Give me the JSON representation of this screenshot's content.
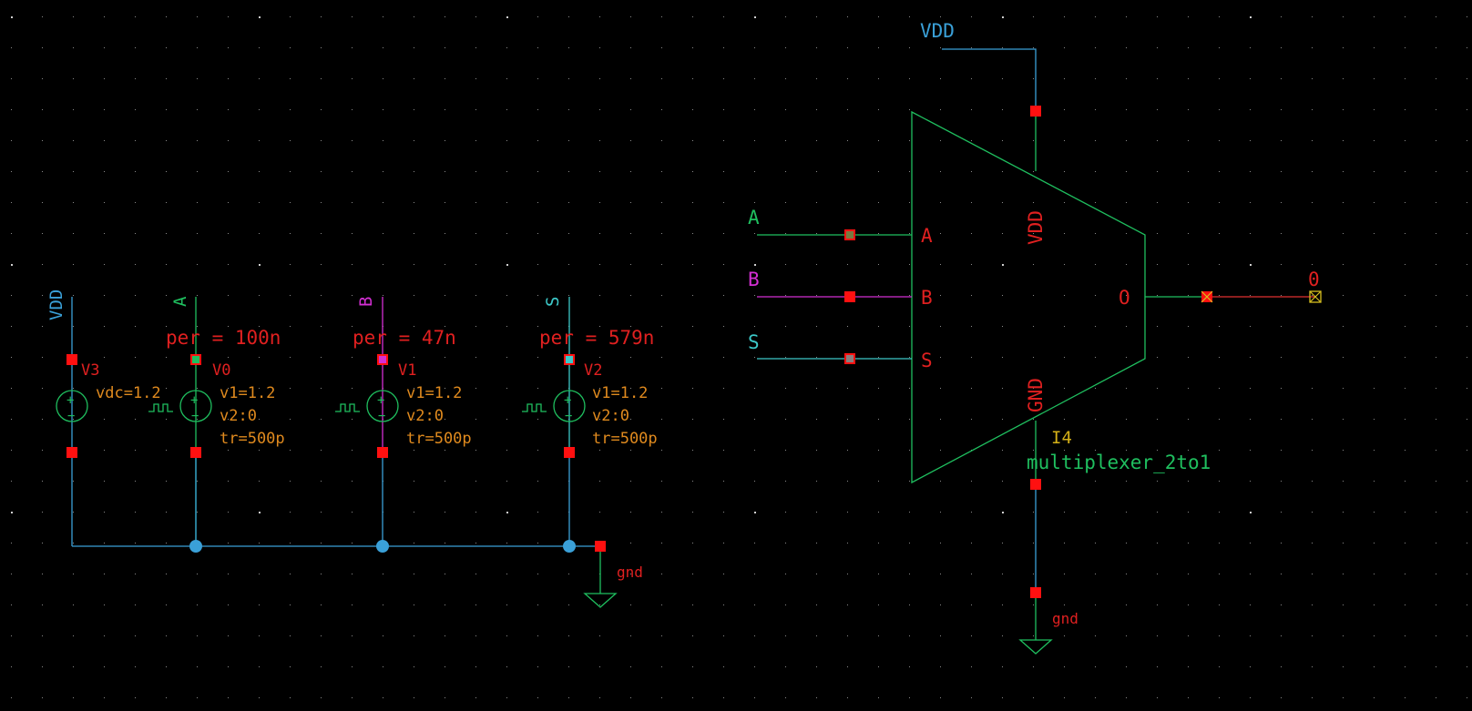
{
  "colors": {
    "background": "#000000",
    "grid_dot": "#8a8a8a",
    "wire_blue": "#3aa0d8",
    "wire_green": "#1fbf5f",
    "wire_magenta": "#d42fd4",
    "wire_cyan": "#3cc8c8",
    "wire_red": "#e03030",
    "pin_red": "#ff1010",
    "param_orange": "#e08a1e",
    "label_red": "#e02020",
    "instance_yellow": "#d4b018",
    "cell_green": "#1fbf5f",
    "net_label_blue": "#3aa0d8",
    "output_pin": "#d8c020"
  },
  "sources": {
    "v3": {
      "net": "VDD",
      "name": "V3",
      "params": [
        "vdc=1.2"
      ]
    },
    "v0": {
      "net": "A",
      "name": "V0",
      "per": "per = 100n",
      "params": [
        "v1=1.2",
        "v2:0",
        "tr=500p"
      ]
    },
    "v1": {
      "net": "B",
      "name": "V1",
      "per": "per = 47n",
      "params": [
        "v1=1.2",
        "v2:0",
        "tr=500p"
      ]
    },
    "v2": {
      "net": "S",
      "name": "V2",
      "per": "per = 579n",
      "params": [
        "v1=1.2",
        "v2:0",
        "tr=500p"
      ]
    }
  },
  "ground_left": {
    "label": "gnd"
  },
  "ground_right": {
    "label": "gnd"
  },
  "mux": {
    "instance": "I4",
    "cell": "multiplexer_2to1",
    "pins": {
      "a": "A",
      "b": "B",
      "s": "S",
      "vdd": "VDD",
      "gnd": "GND",
      "o": "O"
    }
  },
  "nets": {
    "vdd_top": "VDD",
    "in_a": "A",
    "in_b": "B",
    "in_s": "S",
    "out": "0"
  }
}
